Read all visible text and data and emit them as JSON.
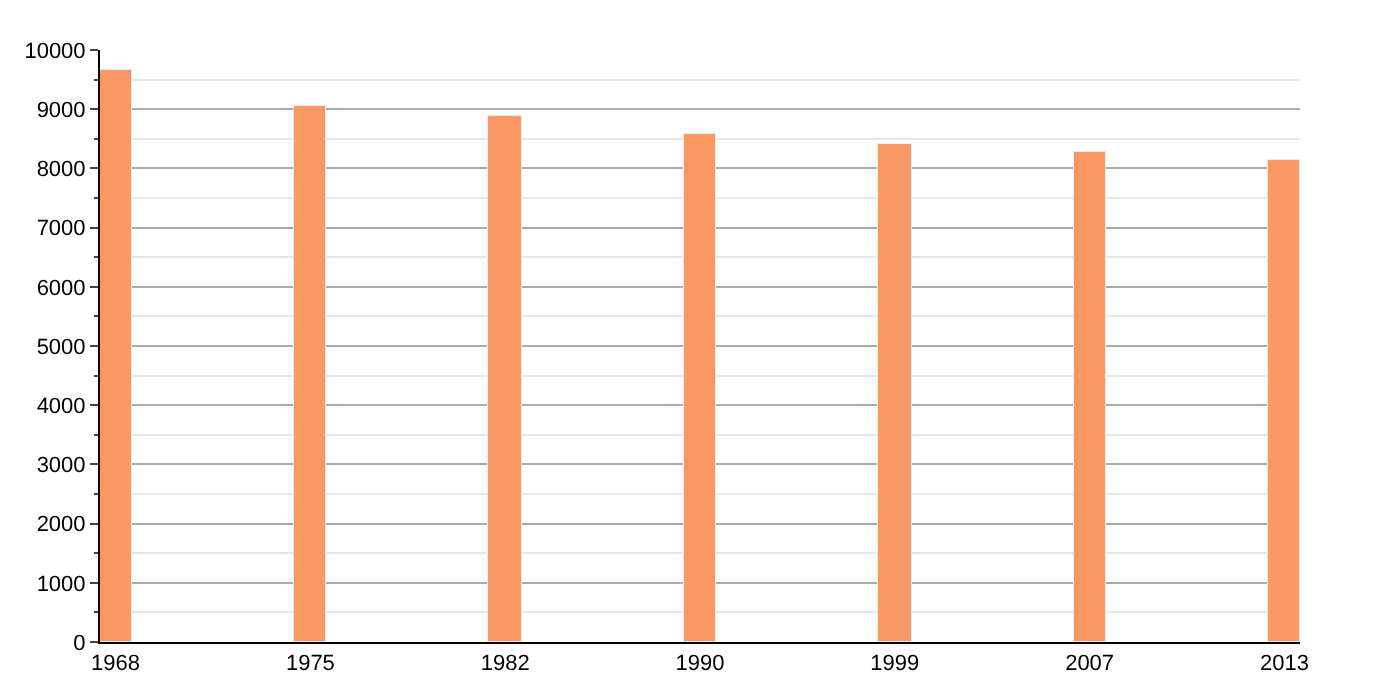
{
  "chart_data": {
    "type": "bar",
    "categories": [
      "1968",
      "1975",
      "1982",
      "1990",
      "1999",
      "2007",
      "2013"
    ],
    "values": [
      9655,
      9070,
      8900,
      8590,
      8420,
      8280,
      8140
    ],
    "color": "#f99862",
    "ylim": [
      0,
      10000
    ],
    "yticks": [
      0,
      {
        "value": 500,
        "label": null
      },
      1000,
      {
        "value": 1500,
        "label": null
      },
      2000,
      {
        "value": 2500,
        "label": null
      },
      3000,
      {
        "value": 3500,
        "label": null
      },
      4000,
      {
        "value": 4500,
        "label": null
      },
      5000,
      {
        "value": 5500,
        "label": null
      },
      6000,
      {
        "value": 6500,
        "label": null
      },
      7000,
      {
        "value": 7500,
        "label": null
      },
      8000,
      {
        "value": 8500,
        "label": null
      },
      9000,
      {
        "value": 9500,
        "label": null
      },
      10000
    ],
    "grid": "y",
    "legend": false
  }
}
